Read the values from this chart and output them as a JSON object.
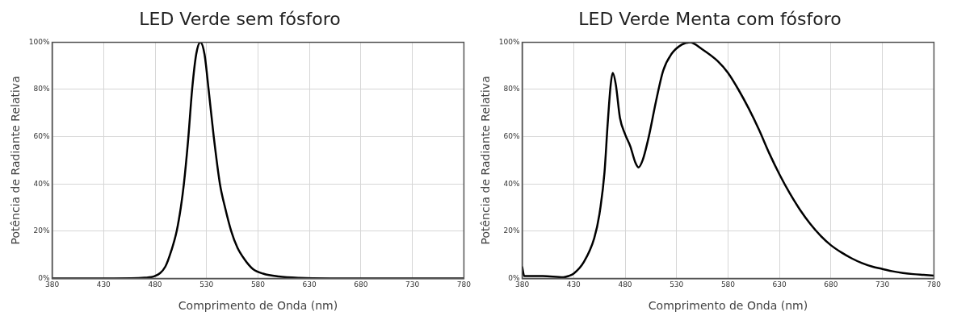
{
  "chart_data": [
    {
      "type": "line",
      "title": "LED Verde sem fósforo",
      "xlabel": "Comprimento de Onda (nm)",
      "ylabel": "Potência de Radiante Relativa",
      "xlim": [
        380,
        780
      ],
      "xticks": [
        380,
        430,
        480,
        530,
        580,
        630,
        680,
        730,
        780
      ],
      "ylim": [
        0,
        100
      ],
      "yticks": [
        {
          "value": 0,
          "label": "0%"
        },
        {
          "value": 20,
          "label": "20%"
        },
        {
          "value": 40,
          "label": "40%"
        },
        {
          "value": 60,
          "label": "60%"
        },
        {
          "value": 80,
          "label": "80%"
        },
        {
          "value": 100,
          "label": "100%"
        }
      ],
      "grid": true,
      "legend": false,
      "series": [
        {
          "color": "#000000",
          "x": [
            380,
            440,
            470,
            480,
            490,
            496,
            501,
            505,
            508,
            512,
            516,
            520,
            524,
            528,
            532,
            537,
            543,
            548,
            554,
            560,
            567,
            575,
            585,
            600,
            620,
            650,
            700,
            780
          ],
          "values": [
            0,
            0,
            0.3,
            1,
            5,
            12,
            20,
            30,
            40,
            58,
            80,
            95,
            100,
            95,
            80,
            60,
            40,
            30,
            20,
            13,
            8,
            4,
            2,
            0.8,
            0.2,
            0,
            0,
            0
          ]
        }
      ]
    },
    {
      "type": "line",
      "title": "LED Verde Menta com fósforo",
      "xlabel": "Comprimento de Onda (nm)",
      "ylabel": "Potência de Radiante Relativa",
      "xlim": [
        380,
        780
      ],
      "xticks": [
        380,
        430,
        480,
        530,
        580,
        630,
        680,
        730,
        780
      ],
      "ylim": [
        0,
        100
      ],
      "yticks": [
        {
          "value": 0,
          "label": "0%"
        },
        {
          "value": 20,
          "label": "20%"
        },
        {
          "value": 40,
          "label": "40%"
        },
        {
          "value": 60,
          "label": "60%"
        },
        {
          "value": 80,
          "label": "80%"
        },
        {
          "value": 100,
          "label": "100%"
        }
      ],
      "grid": true,
      "legend": false,
      "series": [
        {
          "color": "#000000",
          "x": [
            380,
            382,
            400,
            420,
            425,
            430,
            440,
            450,
            455,
            460,
            463,
            466,
            468,
            471,
            475,
            480,
            485,
            490,
            493,
            497,
            503,
            510,
            517,
            525,
            535,
            543,
            555,
            570,
            580,
            590,
            600,
            610,
            620,
            630,
            640,
            650,
            660,
            670,
            680,
            690,
            700,
            710,
            720,
            730,
            740,
            750,
            760,
            770,
            780
          ],
          "values": [
            5,
            1,
            1,
            0.5,
            1,
            2,
            7,
            17,
            27,
            45,
            65,
            82,
            87,
            82,
            68,
            61,
            56,
            49,
            47,
            50,
            60,
            75,
            88,
            95,
            99,
            100,
            97,
            92,
            87,
            80,
            72,
            63,
            53,
            44,
            36,
            29,
            23,
            18,
            14,
            11,
            8.5,
            6.5,
            5,
            4,
            3,
            2.3,
            1.8,
            1.5,
            1.2
          ]
        }
      ]
    }
  ]
}
